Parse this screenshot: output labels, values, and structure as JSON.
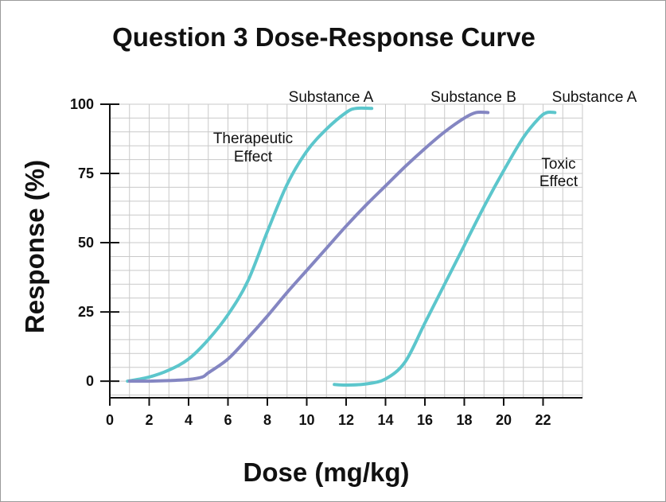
{
  "chart_data": {
    "type": "line",
    "title": "Question 3 Dose-Response Curve",
    "xlabel": "Dose (mg/kg)",
    "ylabel": "Response (%)",
    "xlim": [
      0,
      24
    ],
    "ylim": [
      -6,
      100
    ],
    "x_ticks": [
      0,
      2,
      4,
      6,
      8,
      10,
      12,
      14,
      16,
      18,
      20,
      22
    ],
    "y_ticks": [
      0,
      25,
      50,
      75,
      100
    ],
    "grid": true,
    "colors": {
      "teal": "#5cc6cc",
      "purple": "#8486c2"
    },
    "series": [
      {
        "name": "Substance A",
        "role": "Therapeutic Effect",
        "color": "#5cc6cc",
        "points": [
          [
            0.9,
            0
          ],
          [
            2,
            1.5
          ],
          [
            3,
            4
          ],
          [
            4,
            8
          ],
          [
            5,
            15
          ],
          [
            6,
            24
          ],
          [
            7,
            36
          ],
          [
            8,
            54
          ],
          [
            9,
            71
          ],
          [
            10,
            83
          ],
          [
            11,
            91
          ],
          [
            12,
            97
          ],
          [
            12.5,
            98.5
          ],
          [
            13.3,
            98.5
          ]
        ]
      },
      {
        "name": "Substance B",
        "color": "#8486c2",
        "points": [
          [
            1,
            0
          ],
          [
            2,
            0
          ],
          [
            3,
            0.2
          ],
          [
            4,
            0.6
          ],
          [
            4.7,
            1.5
          ],
          [
            5,
            3
          ],
          [
            6,
            8
          ],
          [
            7,
            15.5
          ],
          [
            8,
            23.5
          ],
          [
            9,
            32
          ],
          [
            10,
            40
          ],
          [
            11,
            48
          ],
          [
            12,
            56
          ],
          [
            13,
            63.5
          ],
          [
            14,
            70.5
          ],
          [
            15,
            77.5
          ],
          [
            16,
            84
          ],
          [
            17,
            90
          ],
          [
            18,
            95
          ],
          [
            18.6,
            97
          ],
          [
            19.2,
            97
          ]
        ]
      },
      {
        "name": "Substance A",
        "role": "Toxic Effect",
        "color": "#5cc6cc",
        "points": [
          [
            11.4,
            -1.2
          ],
          [
            12,
            -1.4
          ],
          [
            13,
            -1
          ],
          [
            14,
            0.8
          ],
          [
            15,
            7
          ],
          [
            16,
            21
          ],
          [
            17,
            35
          ],
          [
            18,
            49
          ],
          [
            19,
            63
          ],
          [
            20,
            76
          ],
          [
            21,
            88
          ],
          [
            21.8,
            95
          ],
          [
            22.2,
            97
          ],
          [
            22.6,
            97
          ]
        ]
      }
    ],
    "annotations": [
      {
        "id": "substance_a_left",
        "text": "Substance A"
      },
      {
        "id": "substance_b",
        "text": "Substance B"
      },
      {
        "id": "substance_a_right",
        "text": "Substance A"
      },
      {
        "id": "therapeutic_line1",
        "text": "Therapeutic"
      },
      {
        "id": "therapeutic_line2",
        "text": "Effect"
      },
      {
        "id": "toxic_line1",
        "text": "Toxic"
      },
      {
        "id": "toxic_line2",
        "text": "Effect"
      }
    ]
  }
}
